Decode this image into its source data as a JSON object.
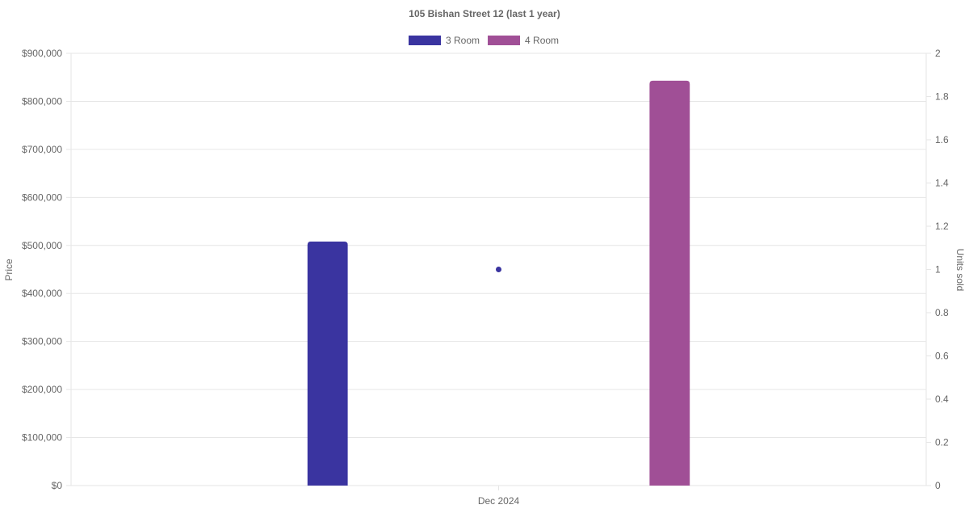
{
  "chart_data": {
    "type": "bar",
    "title": "105 Bishan Street 12 (last 1 year)",
    "categories": [
      "Dec 2024"
    ],
    "series": [
      {
        "name": "3 Room",
        "color": "#3a34a0",
        "values": [
          508000
        ],
        "axis": "left"
      },
      {
        "name": "4 Room",
        "color": "#a04f96",
        "values": [
          843000
        ],
        "axis": "left"
      }
    ],
    "point_series": [
      {
        "color": "#3a34a0",
        "x": "Dec 2024",
        "value": 1,
        "axis": "right"
      }
    ],
    "ylabel": "Price",
    "y2label": "Units sold",
    "ylim": [
      0,
      900000
    ],
    "y2lim": [
      0,
      2
    ],
    "y_ticks": [
      "$0",
      "$100,000",
      "$200,000",
      "$300,000",
      "$400,000",
      "$500,000",
      "$600,000",
      "$700,000",
      "$800,000",
      "$900,000"
    ],
    "y2_ticks": [
      "0",
      "0.2",
      "0.4",
      "0.6",
      "0.8",
      "1",
      "1.2",
      "1.4",
      "1.6",
      "1.8",
      "2"
    ],
    "legend_position": "top",
    "grid": true
  }
}
